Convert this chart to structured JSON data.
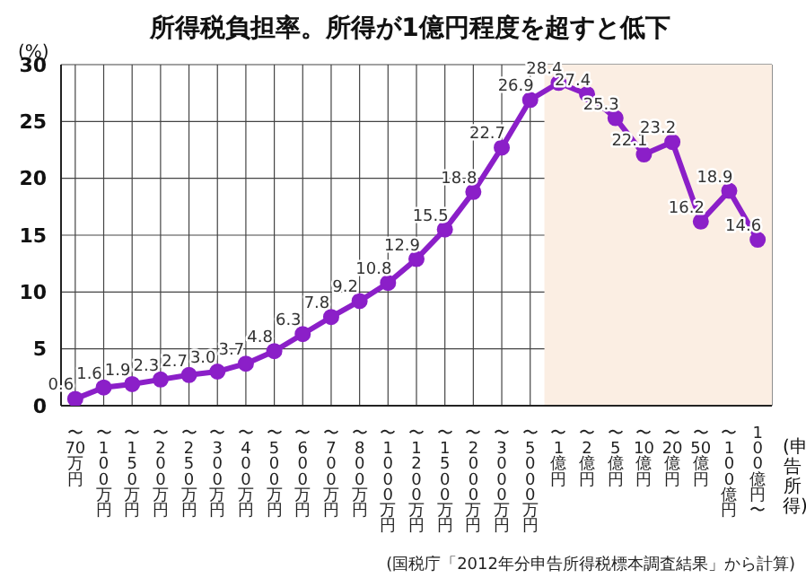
{
  "chart_data": {
    "type": "line",
    "title": "所得税負担率。所得が1億円程度を超すと低下",
    "ylabel": "(%)",
    "xlabel": "(申告所得)",
    "annotations": [
      "(国税庁「2012年分申告所得税標本調査結果」から計算)"
    ],
    "categories": [
      "〜70万円",
      "〜100万円",
      "〜150万円",
      "〜200万円",
      "〜250万円",
      "〜300万円",
      "〜400万円",
      "〜500万円",
      "〜600万円",
      "〜700万円",
      "〜800万円",
      "〜1000万円",
      "〜1200万円",
      "〜1500万円",
      "〜2000万円",
      "〜3000万円",
      "〜5000万円",
      "〜1億円",
      "〜2億円",
      "〜5億円",
      "〜10億円",
      "〜20億円",
      "〜50億円",
      "〜100億円",
      "100億円〜"
    ],
    "series": [
      {
        "color": "#8b1fc8",
        "values": [
          0.6,
          1.6,
          1.9,
          2.3,
          2.7,
          3.0,
          3.7,
          4.8,
          6.3,
          7.8,
          9.2,
          10.8,
          12.9,
          15.5,
          18.8,
          22.7,
          26.9,
          28.4,
          27.4,
          25.3,
          22.1,
          23.2,
          16.2,
          18.9,
          14.6
        ],
        "value_labels": [
          "0.6",
          "1.6",
          "1.9",
          "2.3",
          "2.7",
          "3.0",
          "3.7",
          "4.8",
          "6.3",
          "7.8",
          "9.2",
          "10.8",
          "12.9",
          "15.5",
          "18.8",
          "22.7",
          "26.9",
          "28.4",
          "27.4",
          "25.3",
          "22.1",
          "23.2",
          "16.2",
          "18.9",
          "14.6"
        ]
      }
    ],
    "ylim": [
      0,
      30
    ],
    "yticks": [
      0,
      5,
      10,
      15,
      20,
      25,
      30
    ],
    "grid": true,
    "marker": "circle",
    "line_style": "solid",
    "bands": [
      {
        "axis": "x",
        "from": "〜1億円",
        "to": "100億円〜",
        "color": "#fbeee3"
      }
    ]
  }
}
